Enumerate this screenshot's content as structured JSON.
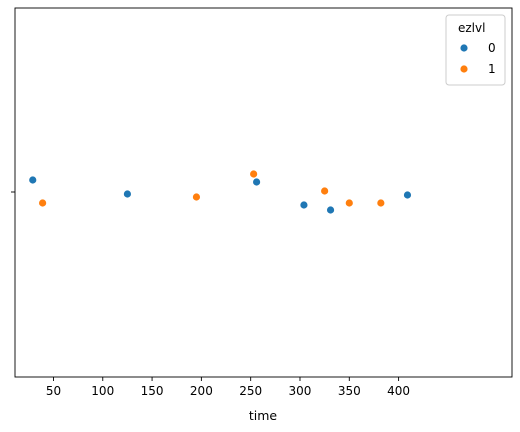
{
  "chart_data": {
    "type": "scatter",
    "xlabel": "time",
    "ylabel": "",
    "xlim": [
      11,
      515
    ],
    "x_ticks": [
      50,
      100,
      150,
      200,
      250,
      300,
      350,
      400
    ],
    "y_categorical": true,
    "y_tick_count": 1,
    "grid": false,
    "legend": {
      "title": "ezlvl",
      "placement": "top-right",
      "entries": [
        "0",
        "1"
      ]
    },
    "series": [
      {
        "name": "0",
        "color": "#1f77b4",
        "points": [
          {
            "x": 29,
            "jitter": -0.12
          },
          {
            "x": 125,
            "jitter": 0.02
          },
          {
            "x": 256,
            "jitter": -0.1
          },
          {
            "x": 304,
            "jitter": 0.13
          },
          {
            "x": 331,
            "jitter": 0.18
          },
          {
            "x": 409,
            "jitter": 0.03
          }
        ]
      },
      {
        "name": "1",
        "color": "#ff7f0e",
        "points": [
          {
            "x": 39,
            "jitter": 0.11
          },
          {
            "x": 195,
            "jitter": 0.05
          },
          {
            "x": 253,
            "jitter": -0.18
          },
          {
            "x": 325,
            "jitter": -0.01
          },
          {
            "x": 350,
            "jitter": 0.11
          },
          {
            "x": 382,
            "jitter": 0.11
          }
        ]
      }
    ]
  }
}
